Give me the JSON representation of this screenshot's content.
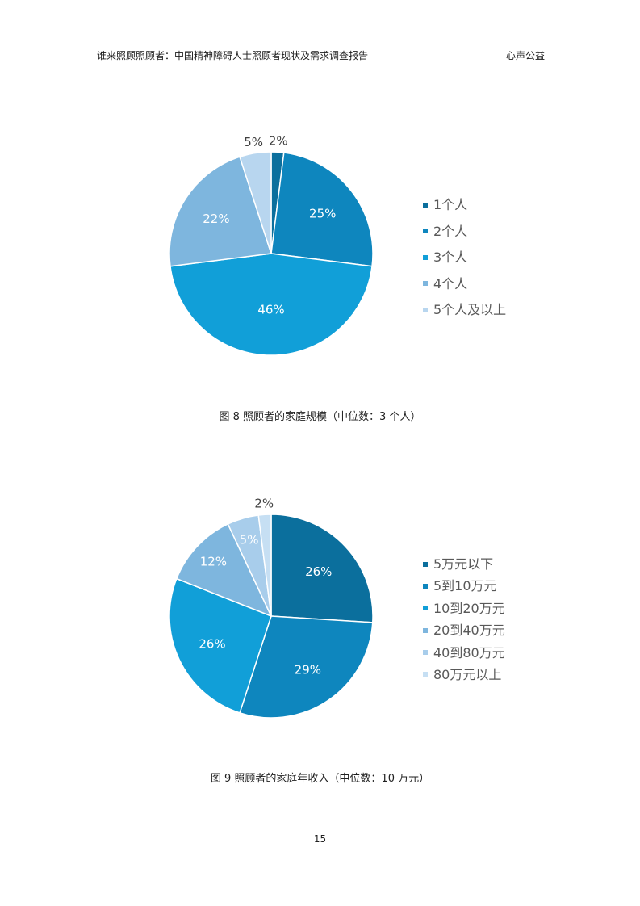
{
  "header": {
    "report_title": "谁来照顾照顾者：中国精神障碍人士照顾者现状及需求调查报告",
    "organization": "心声公益"
  },
  "chart_data": [
    {
      "type": "pie",
      "title": "图 8 照顾者的家庭规模（中位数：3 个人）",
      "categories": [
        "1个人",
        "2个人",
        "3个人",
        "4个人",
        "5个人及以上"
      ],
      "values": [
        2,
        25,
        46,
        22,
        5
      ],
      "data_labels": [
        "2%",
        "25%",
        "46%",
        "22%",
        "5%"
      ],
      "colors": [
        "#0b6f9d",
        "#0e86be",
        "#119fd8",
        "#7eb6de",
        "#b8d6ef"
      ],
      "legend": "right"
    },
    {
      "type": "pie",
      "title": "图 9 照顾者的家庭年收入（中位数：10 万元）",
      "categories": [
        "5万元以下",
        "5到10万元",
        "10到20万元",
        "20到40万元",
        "40到80万元",
        "80万元以上"
      ],
      "values": [
        26,
        29,
        26,
        12,
        5,
        2
      ],
      "data_labels": [
        "26%",
        "29%",
        "26%",
        "12%",
        "5%",
        "2%"
      ],
      "colors": [
        "#0b6f9d",
        "#0e86be",
        "#119fd8",
        "#7eb6de",
        "#a8cdeb",
        "#c6dff3"
      ],
      "legend": "right"
    }
  ],
  "page_number": "15"
}
